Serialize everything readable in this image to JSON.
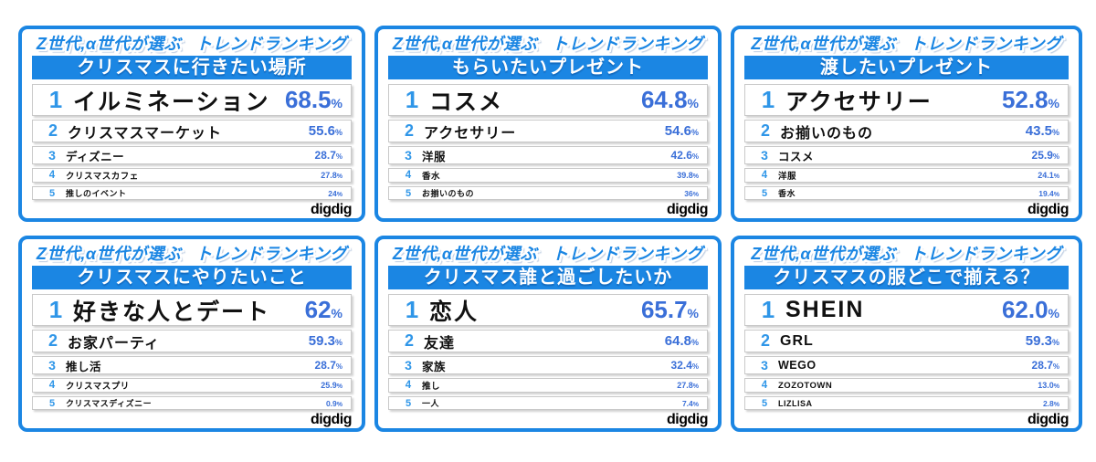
{
  "brand": {
    "header_left": "Z世代,α世代が選ぶ",
    "header_right": "トレンドランキング",
    "logo": "digdig"
  },
  "colors": {
    "primary_blue": "#1b86e3",
    "rank_blue": "#2f96e8",
    "percent_blue": "#3a6fd8",
    "item_black": "#111111",
    "row_border_gray": "#c9c9c9",
    "card_background": "#ffffff"
  },
  "chart_data": [
    {
      "type": "table",
      "title": "クリスマスに行きたい場所",
      "categories": [
        "イルミネーション",
        "クリスマスマーケット",
        "ディズニー",
        "クリスマスカフェ",
        "推しのイベント"
      ],
      "values": [
        68.5,
        55.6,
        28.7,
        27.8,
        24
      ],
      "unit": "%",
      "rows": [
        {
          "rank": "1",
          "label": "イルミネーション",
          "value": "68.5",
          "unit": "%"
        },
        {
          "rank": "2",
          "label": "クリスマスマーケット",
          "value": "55.6",
          "unit": "%"
        },
        {
          "rank": "3",
          "label": "ディズニー",
          "value": "28.7",
          "unit": "%"
        },
        {
          "rank": "4",
          "label": "クリスマスカフェ",
          "value": "27.8",
          "unit": "%"
        },
        {
          "rank": "5",
          "label": "推しのイベント",
          "value": "24",
          "unit": "%"
        }
      ]
    },
    {
      "type": "table",
      "title": "もらいたいプレゼント",
      "categories": [
        "コスメ",
        "アクセサリー",
        "洋服",
        "香水",
        "お揃いのもの"
      ],
      "values": [
        64.8,
        54.6,
        42.6,
        39.8,
        36
      ],
      "unit": "%",
      "rows": [
        {
          "rank": "1",
          "label": "コスメ",
          "value": "64.8",
          "unit": "%"
        },
        {
          "rank": "2",
          "label": "アクセサリー",
          "value": "54.6",
          "unit": "%"
        },
        {
          "rank": "3",
          "label": "洋服",
          "value": "42.6",
          "unit": "%"
        },
        {
          "rank": "4",
          "label": "香水",
          "value": "39.8",
          "unit": "%"
        },
        {
          "rank": "5",
          "label": "お揃いのもの",
          "value": "36",
          "unit": "%"
        }
      ]
    },
    {
      "type": "table",
      "title": "渡したいプレゼント",
      "categories": [
        "アクセサリー",
        "お揃いのもの",
        "コスメ",
        "洋服",
        "香水"
      ],
      "values": [
        52.8,
        43.5,
        25.9,
        24.1,
        19.4
      ],
      "unit": "%",
      "rows": [
        {
          "rank": "1",
          "label": "アクセサリー",
          "value": "52.8",
          "unit": "%"
        },
        {
          "rank": "2",
          "label": "お揃いのもの",
          "value": "43.5",
          "unit": "%"
        },
        {
          "rank": "3",
          "label": "コスメ",
          "value": "25.9",
          "unit": "%"
        },
        {
          "rank": "4",
          "label": "洋服",
          "value": "24.1",
          "unit": "%"
        },
        {
          "rank": "5",
          "label": "香水",
          "value": "19.4",
          "unit": "%"
        }
      ]
    },
    {
      "type": "table",
      "title": "クリスマスにやりたいこと",
      "categories": [
        "好きな人とデート",
        "お家パーティ",
        "推し活",
        "クリスマスプリ",
        "クリスマスディズニー"
      ],
      "values": [
        62,
        59.3,
        28.7,
        25.9,
        0.9
      ],
      "unit": "%",
      "rows": [
        {
          "rank": "1",
          "label": "好きな人とデート",
          "value": "62",
          "unit": "%"
        },
        {
          "rank": "2",
          "label": "お家パーティ",
          "value": "59.3",
          "unit": "%"
        },
        {
          "rank": "3",
          "label": "推し活",
          "value": "28.7",
          "unit": "%"
        },
        {
          "rank": "4",
          "label": "クリスマスプリ",
          "value": "25.9",
          "unit": "%"
        },
        {
          "rank": "5",
          "label": "クリスマスディズニー",
          "value": "0.9",
          "unit": "%"
        }
      ]
    },
    {
      "type": "table",
      "title": "クリスマス誰と過ごしたいか",
      "categories": [
        "恋人",
        "友達",
        "家族",
        "推し",
        "一人"
      ],
      "values": [
        65.7,
        64.8,
        32.4,
        27.8,
        7.4
      ],
      "unit": "%",
      "rows": [
        {
          "rank": "1",
          "label": "恋人",
          "value": "65.7",
          "unit": "%"
        },
        {
          "rank": "2",
          "label": "友達",
          "value": "64.8",
          "unit": "%"
        },
        {
          "rank": "3",
          "label": "家族",
          "value": "32.4",
          "unit": "%"
        },
        {
          "rank": "4",
          "label": "推し",
          "value": "27.8",
          "unit": "%"
        },
        {
          "rank": "5",
          "label": "一人",
          "value": "7.4",
          "unit": "%"
        }
      ]
    },
    {
      "type": "table",
      "title": "クリスマスの服どこで揃える？",
      "categories": [
        "SHEIN",
        "GRL",
        "WEGO",
        "ZOZOTOWN",
        "LIZLISA"
      ],
      "values": [
        62.0,
        59.3,
        28.7,
        13.0,
        2.8
      ],
      "unit": "%",
      "rows": [
        {
          "rank": "1",
          "label": "SHEIN",
          "value": "62.0",
          "unit": "%"
        },
        {
          "rank": "2",
          "label": "GRL",
          "value": "59.3",
          "unit": "%"
        },
        {
          "rank": "3",
          "label": "WEGO",
          "value": "28.7",
          "unit": "%"
        },
        {
          "rank": "4",
          "label": "ZOZOTOWN",
          "value": "13.0",
          "unit": "%"
        },
        {
          "rank": "5",
          "label": "LIZLISA",
          "value": "2.8",
          "unit": "%"
        }
      ]
    }
  ]
}
